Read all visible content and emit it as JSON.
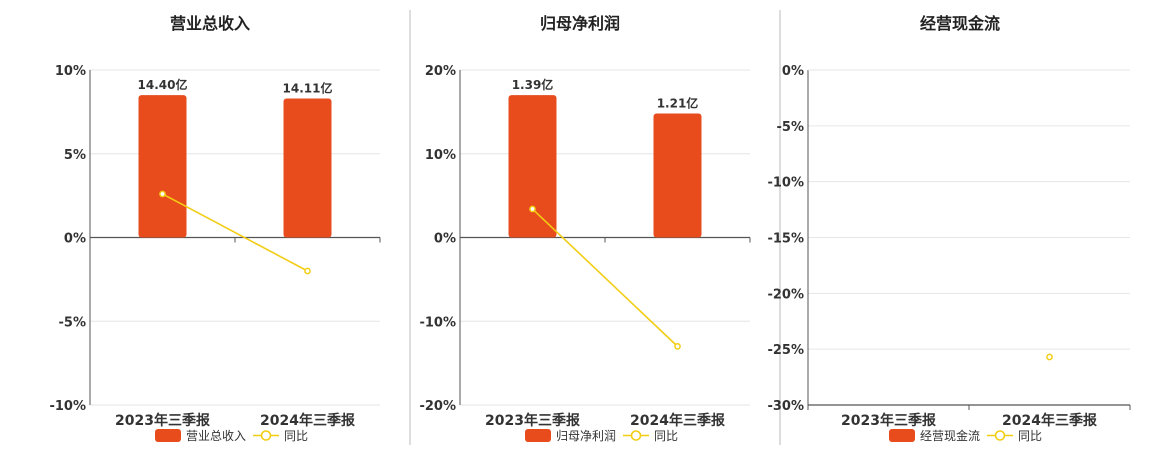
{
  "colors": {
    "bar": "#e84b1c",
    "line": "#f2cd14",
    "grid": "#e6e6e6",
    "axis": "#555555",
    "divider": "#bbbbbb"
  },
  "chart_data": [
    {
      "type": "bar",
      "title": "营业总收入",
      "categories": [
        "2023年三季报",
        "2024年三季报"
      ],
      "ylim": [
        -10,
        10
      ],
      "yticks": [
        "-10%",
        "-5%",
        "0%",
        "5%",
        "10%"
      ],
      "ytick_values": [
        -10,
        -5,
        0,
        5,
        10
      ],
      "bar_heights": [
        8.5,
        8.3
      ],
      "bar_labels": [
        "14.40亿",
        "14.11亿"
      ],
      "line_values": [
        2.6,
        -2.0
      ],
      "legend": [
        "营业总收入",
        "同比"
      ]
    },
    {
      "type": "bar",
      "title": "归母净利润",
      "categories": [
        "2023年三季报",
        "2024年三季报"
      ],
      "ylim": [
        -20,
        20
      ],
      "yticks": [
        "-20%",
        "-10%",
        "0%",
        "10%",
        "20%"
      ],
      "ytick_values": [
        -20,
        -10,
        0,
        10,
        20
      ],
      "bar_heights": [
        17.0,
        14.8
      ],
      "bar_labels": [
        "1.39亿",
        "1.21亿"
      ],
      "line_values": [
        3.4,
        -13.0
      ],
      "legend": [
        "归母净利润",
        "同比"
      ]
    },
    {
      "type": "bar",
      "title": "经营现金流",
      "categories": [
        "2023年三季报",
        "2024年三季报"
      ],
      "ylim": [
        -30,
        0
      ],
      "yticks": [
        "-30%",
        "-25%",
        "-20%",
        "-15%",
        "-10%",
        "-5%",
        "0%"
      ],
      "ytick_values": [
        -30,
        -25,
        -20,
        -15,
        -10,
        -5,
        0
      ],
      "bar_heights": [
        null,
        null
      ],
      "bar_labels": [
        "",
        ""
      ],
      "line_values": [
        null,
        -25.7
      ],
      "legend": [
        "经营现金流",
        "同比"
      ]
    }
  ]
}
